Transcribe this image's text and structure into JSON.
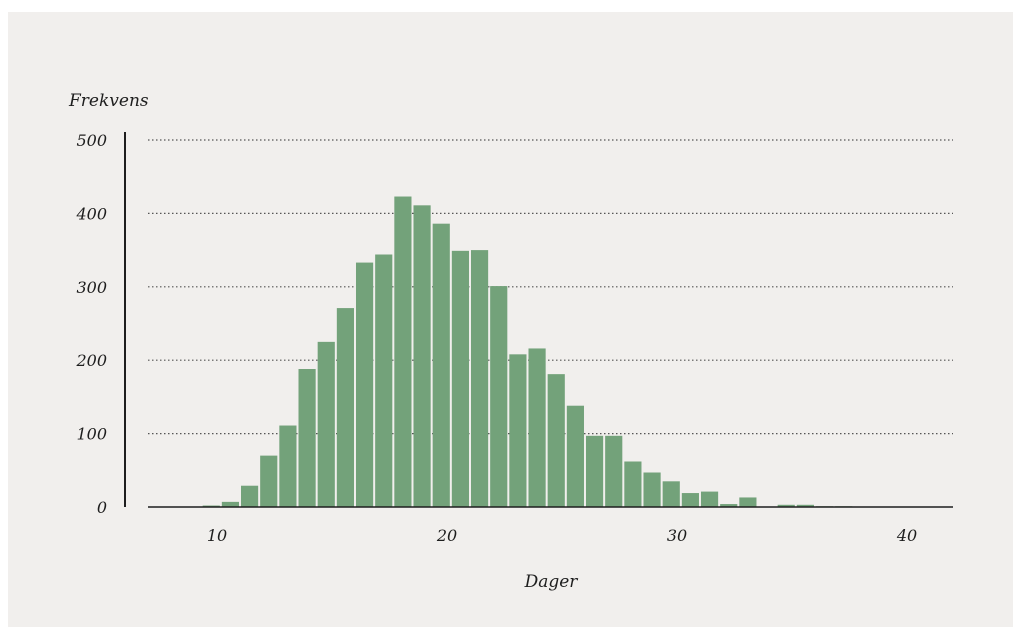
{
  "chart_data": {
    "type": "bar",
    "title": "",
    "xlabel": "Dager",
    "ylabel": "Frekvens",
    "xlim": [
      7,
      42
    ],
    "ylim": [
      0,
      500
    ],
    "xticks": [
      10,
      20,
      30,
      40
    ],
    "yticks": [
      0,
      100,
      200,
      300,
      400,
      500
    ],
    "grid": "horizontal-dotted",
    "bar_color": "#73a27a",
    "gridline_color": "#555555",
    "bins": {
      "start": 8.5,
      "width": 0.8333,
      "values": [
        0,
        2,
        7,
        29,
        70,
        111,
        188,
        225,
        271,
        333,
        344,
        423,
        411,
        386,
        349,
        350,
        301,
        208,
        216,
        181,
        138,
        97,
        97,
        62,
        47,
        35,
        19,
        21,
        4,
        13,
        0,
        3,
        3,
        1,
        1,
        0,
        0,
        0,
        0,
        0,
        0
      ]
    }
  }
}
